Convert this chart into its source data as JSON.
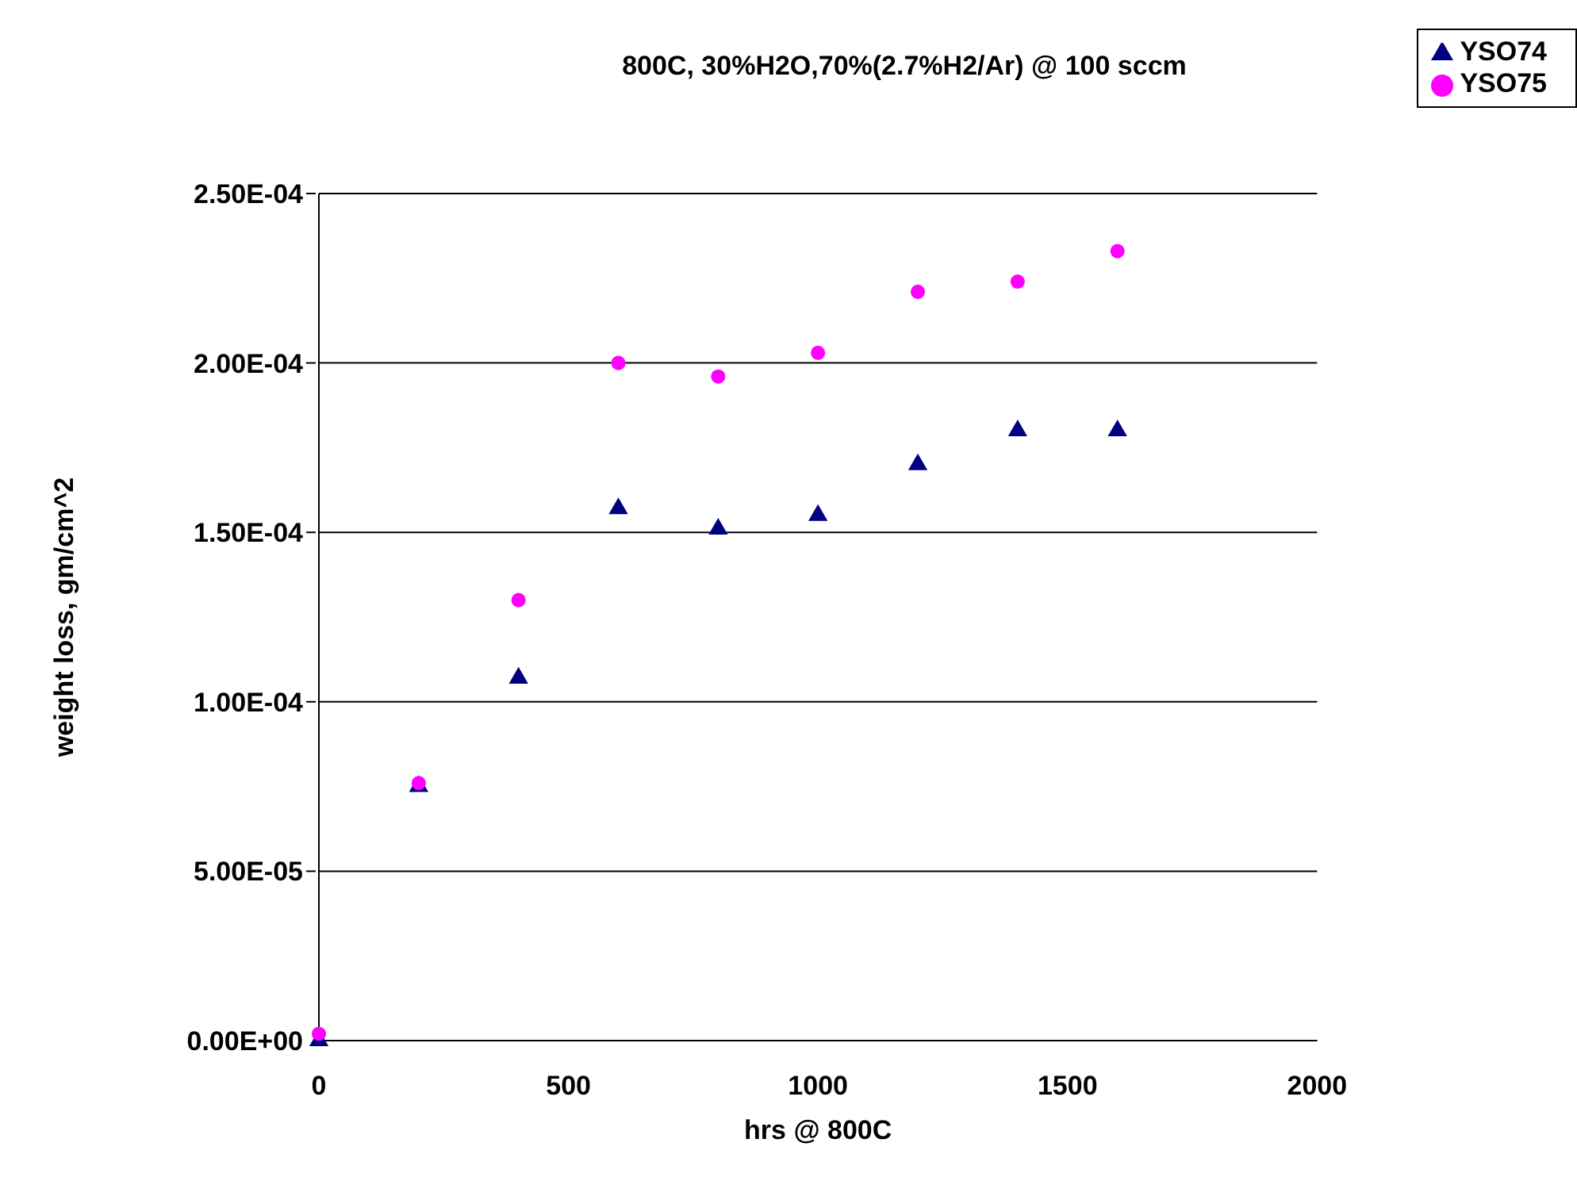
{
  "chart_data": {
    "type": "scatter",
    "title": "800C, 30%H2O,70%(2.7%H2/Ar) @ 100 sccm",
    "xlabel": "hrs @ 800C",
    "ylabel": "weight loss, gm/cm^2",
    "x": [
      0,
      200,
      400,
      600,
      800,
      1000,
      1200,
      1400,
      1600
    ],
    "series": [
      {
        "name": "YSO74",
        "color": "#000080",
        "marker": "triangle",
        "values": [
          0,
          7.5e-05,
          0.000107,
          0.000157,
          0.000151,
          0.000155,
          0.00017,
          0.00018,
          0.00018
        ]
      },
      {
        "name": "YSO75",
        "color": "#ff00ff",
        "marker": "circle",
        "values": [
          2e-06,
          7.6e-05,
          0.00013,
          0.0002,
          0.000196,
          0.000203,
          0.000221,
          0.000224,
          0.000233
        ]
      }
    ],
    "xlim": [
      0,
      2000
    ],
    "xticks": [
      0,
      500,
      1000,
      1500,
      2000
    ],
    "ylim": [
      0,
      0.00025
    ],
    "yticks": [
      {
        "value": 0,
        "label": "0.00E+00"
      },
      {
        "value": 5e-05,
        "label": "5.00E-05"
      },
      {
        "value": 0.0001,
        "label": "1.00E-04"
      },
      {
        "value": 0.00015,
        "label": "1.50E-04"
      },
      {
        "value": 0.0002,
        "label": "2.00E-04"
      },
      {
        "value": 0.00025,
        "label": "2.50E-04"
      }
    ],
    "grid": "y",
    "legend": "top right"
  }
}
